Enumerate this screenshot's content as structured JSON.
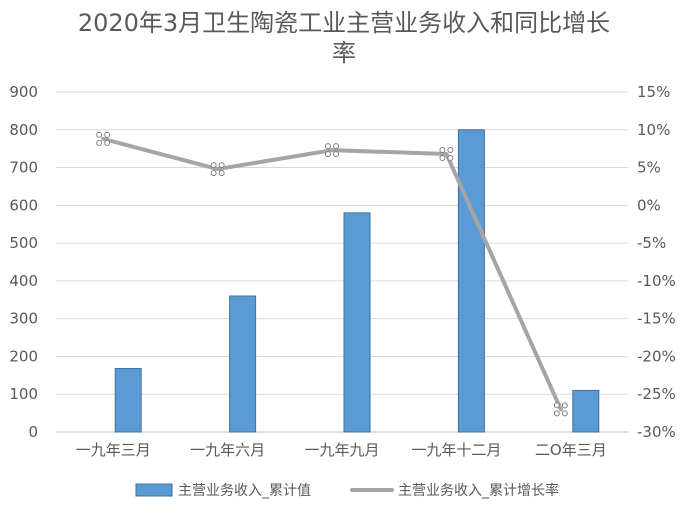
{
  "chart_data": {
    "type": "bar",
    "title_line1": "2020年3月卫生陶瓷工业主营业务收入和同比增长",
    "title_line2": "率",
    "categories": [
      "一九年三月",
      "一九年六月",
      "一九年九月",
      "一九年十二月",
      "二O年三月"
    ],
    "series": [
      {
        "name": "主营业务收入_累计值",
        "type": "bar",
        "axis": "left",
        "values": [
          168,
          360,
          580,
          800,
          110
        ],
        "color": "#5b9bd5"
      },
      {
        "name": "主营业务收入_累计增长率",
        "type": "line",
        "axis": "right",
        "values": [
          8.8,
          4.8,
          7.3,
          6.8,
          -27.0
        ],
        "color": "#a5a5a5"
      }
    ],
    "y_left": {
      "min": 0,
      "max": 900,
      "step": 100,
      "ticks": [
        "0",
        "100",
        "200",
        "300",
        "400",
        "500",
        "600",
        "700",
        "800",
        "900"
      ]
    },
    "y_right": {
      "min": -30,
      "max": 15,
      "step": 5,
      "ticks": [
        "-30%",
        "-25%",
        "-20%",
        "-15%",
        "-10%",
        "-5%",
        "0%",
        "5%",
        "10%",
        "15%"
      ]
    },
    "grid": true,
    "legend": "bottom"
  }
}
